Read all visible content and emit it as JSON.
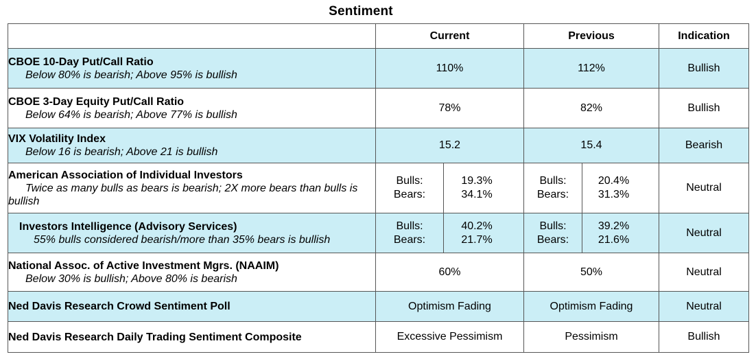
{
  "title": "Sentiment",
  "headers": {
    "current": "Current",
    "previous": "Previous",
    "indication": "Indication"
  },
  "rows": [
    {
      "name": "CBOE 10-Day Put/Call Ratio",
      "rule": "Below 80% is bearish; Above 95% is bullish",
      "current": "110%",
      "previous": "112%",
      "indication": "Bullish"
    },
    {
      "name": "CBOE 3-Day Equity Put/Call Ratio",
      "rule": "Below 64% is bearish; Above 77% is bullish",
      "current": "78%",
      "previous": "82%",
      "indication": "Bullish"
    },
    {
      "name": "VIX Volatility Index",
      "rule": "Below 16 is bearish; Above 21 is bullish",
      "current": "15.2",
      "previous": "15.4",
      "indication": "Bearish"
    },
    {
      "name": "American Association of Individual Investors",
      "rule": "Twice as many bulls as bears is bearish; 2X more bears than bulls is bullish",
      "current": {
        "bulls_label": "Bulls:",
        "bears_label": "Bears:",
        "bulls": "19.3%",
        "bears": "34.1%"
      },
      "previous": {
        "bulls_label": "Bulls:",
        "bears_label": "Bears:",
        "bulls": "20.4%",
        "bears": "31.3%"
      },
      "indication": "Neutral"
    },
    {
      "name": "Investors Intelligence (Advisory Services)",
      "rule": "55% bulls considered bearish/more than 35% bears is bullish",
      "current": {
        "bulls_label": "Bulls:",
        "bears_label": "Bears:",
        "bulls": "40.2%",
        "bears": "21.7%"
      },
      "previous": {
        "bulls_label": "Bulls:",
        "bears_label": "Bears:",
        "bulls": "39.2%",
        "bears": "21.6%"
      },
      "indication": "Neutral"
    },
    {
      "name": "National Assoc. of Active Investment Mgrs. (NAAIM)",
      "rule": "Below 30% is bullish; Above 80% is bearish",
      "current": "60%",
      "previous": "50%",
      "indication": "Neutral"
    },
    {
      "name": "Ned Davis Research Crowd Sentiment Poll",
      "current": "Optimism Fading",
      "previous": "Optimism Fading",
      "indication": "Neutral"
    },
    {
      "name": "Ned Davis Research Daily Trading Sentiment Composite",
      "current": "Excessive Pessimism",
      "previous": "Pessimism",
      "indication": "Bullish"
    }
  ]
}
